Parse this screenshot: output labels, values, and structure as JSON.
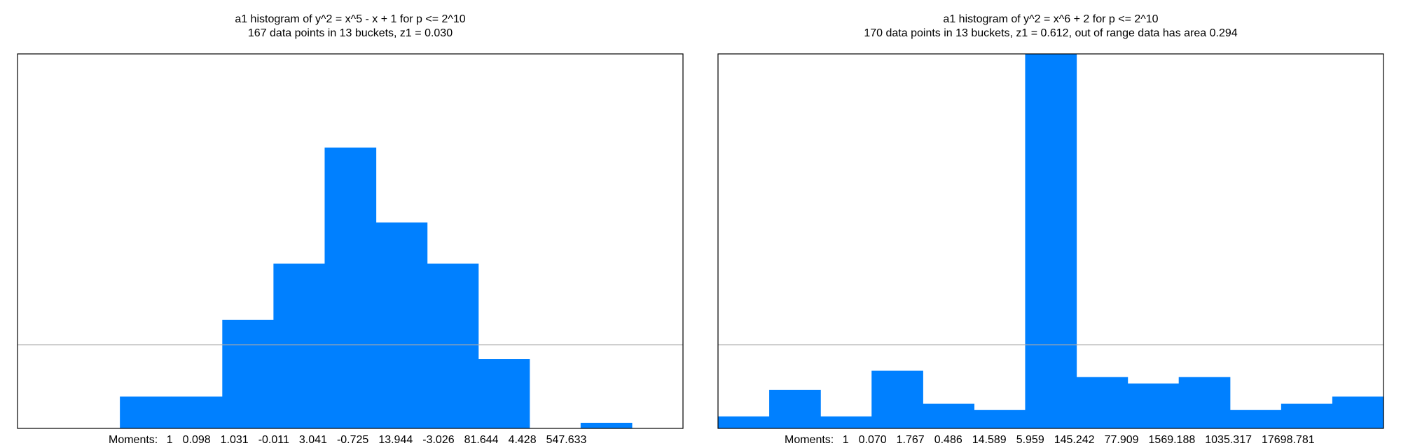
{
  "chart_data": [
    {
      "type": "bar",
      "title": "a1 histogram of y^2 = x^5 - x + 1 for p <= 2^10",
      "subtitle": "167 data points in 13 buckets, z1 = 0.030",
      "buckets": 13,
      "values": [
        0,
        0,
        0.085,
        0.085,
        0.29,
        0.44,
        0.75,
        0.55,
        0.44,
        0.185,
        0,
        0.015,
        0
      ],
      "reference_line": 0.223,
      "ylim": [
        0,
        1
      ],
      "bar_color": "#0080ff",
      "moments_label": "Moments:",
      "moments": [
        "1",
        "0.098",
        "1.031",
        "-0.011",
        "3.041",
        "-0.725",
        "13.944",
        "-3.026",
        "81.644",
        "4.428",
        "547.633"
      ]
    },
    {
      "type": "bar",
      "title": "a1 histogram of y^2 = x^6 + 2 for p <= 2^10",
      "subtitle": "170 data points in 13 buckets, z1 = 0.612, out of range data has area 0.294",
      "buckets": 13,
      "values": [
        0.032,
        0.103,
        0.032,
        0.154,
        0.066,
        0.049,
        1.0,
        0.137,
        0.12,
        0.137,
        0.049,
        0.066,
        0.085
      ],
      "reference_line": 0.223,
      "ylim": [
        0,
        1
      ],
      "bar_color": "#0080ff",
      "moments_label": "Moments:",
      "moments": [
        "1",
        "0.070",
        "1.767",
        "0.486",
        "14.589",
        "5.959",
        "145.242",
        "77.909",
        "1569.188",
        "1035.317",
        "17698.781"
      ]
    }
  ]
}
